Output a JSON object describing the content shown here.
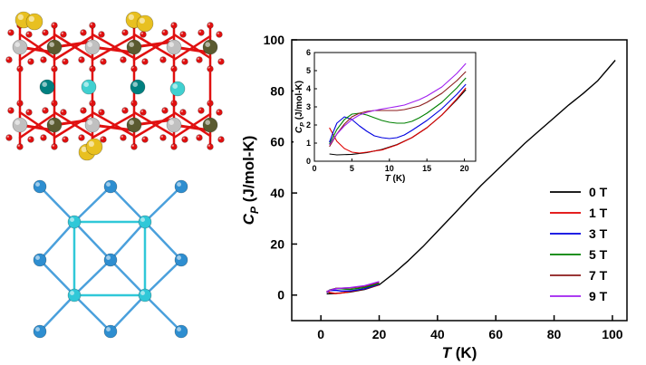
{
  "panels": {
    "crystal_structure": {
      "atom_colors": [
        "#e8c020",
        "#c0c0c0",
        "#5a5a30",
        "#e01010",
        "#008080",
        "#40d0d0"
      ]
    },
    "lattice_network": {
      "site_colors": [
        "#2e8ed0",
        "#30c8d8"
      ],
      "bond_colors": [
        "#4aa0dc",
        "#30c8d8"
      ]
    }
  },
  "chart_data": [
    {
      "type": "line",
      "title": "",
      "xlabel": "T (K)",
      "ylabel": "C_P (J/mol-K)",
      "xlim": [
        -10,
        105
      ],
      "ylim": [
        -10,
        100
      ],
      "xticks": [
        0,
        20,
        40,
        60,
        80,
        100
      ],
      "yticks": [
        0,
        20,
        40,
        60,
        80,
        100
      ],
      "legend_placement": "lower-right",
      "grid": false,
      "series": [
        {
          "name": "0 T",
          "color": "#000000",
          "x": [
            2,
            5,
            10,
            15,
            20,
            25,
            30,
            35,
            40,
            45,
            50,
            55,
            60,
            65,
            70,
            75,
            80,
            85,
            90,
            95,
            101
          ],
          "y": [
            0.5,
            0.6,
            1.2,
            2.2,
            4.0,
            8.5,
            13.5,
            19,
            25,
            31,
            37,
            43,
            48.5,
            54,
            59.5,
            64.5,
            69.5,
            74.5,
            79,
            84,
            92
          ]
        },
        {
          "name": "1 T",
          "color": "#e00000",
          "x": [
            2,
            3,
            5,
            7,
            10,
            15,
            20
          ],
          "y": [
            1.6,
            1.0,
            0.6,
            0.8,
            1.4,
            2.4,
            4.1
          ]
        },
        {
          "name": "3 T",
          "color": "#0000e0",
          "x": [
            2,
            3,
            5,
            7,
            10,
            15,
            20
          ],
          "y": [
            1.0,
            1.8,
            1.9,
            1.6,
            1.6,
            2.5,
            4.3
          ]
        },
        {
          "name": "5 T",
          "color": "#008000",
          "x": [
            2,
            3,
            5,
            7,
            10,
            15,
            20
          ],
          "y": [
            1.2,
            2.0,
            2.6,
            2.5,
            2.2,
            3.0,
            4.6
          ]
        },
        {
          "name": "7 T",
          "color": "#8b1a1a",
          "x": [
            2,
            3,
            5,
            7,
            10,
            15,
            20
          ],
          "y": [
            1.1,
            1.9,
            2.6,
            2.7,
            2.8,
            3.4,
            5.0
          ]
        },
        {
          "name": "9 T",
          "color": "#a020f0",
          "x": [
            2,
            3,
            5,
            7,
            10,
            15,
            20
          ],
          "y": [
            1.2,
            1.9,
            2.5,
            2.7,
            2.9,
            3.7,
            5.3
          ]
        }
      ]
    },
    {
      "type": "line",
      "title": "",
      "xlabel": "T (K)",
      "ylabel": "C_P (J/mol-K)",
      "xlim": [
        0,
        21.5
      ],
      "ylim": [
        0,
        6
      ],
      "xticks": [
        0,
        5,
        10,
        15,
        20
      ],
      "yticks": [
        0,
        1,
        2,
        3,
        4,
        5,
        6
      ],
      "grid": false,
      "series": [
        {
          "name": "0 T",
          "color": "#000000",
          "x": [
            2,
            3,
            5,
            7,
            9,
            11,
            13,
            15,
            17,
            19,
            20.2
          ],
          "y": [
            0.4,
            0.35,
            0.38,
            0.48,
            0.65,
            0.92,
            1.3,
            1.85,
            2.55,
            3.4,
            3.95
          ]
        },
        {
          "name": "1 T",
          "color": "#e00000",
          "x": [
            2,
            3,
            4,
            5,
            6,
            7,
            9,
            11,
            13,
            15,
            17,
            19,
            20.2
          ],
          "y": [
            1.85,
            1.1,
            0.7,
            0.5,
            0.45,
            0.5,
            0.62,
            0.9,
            1.3,
            1.85,
            2.55,
            3.45,
            4.05
          ]
        },
        {
          "name": "3 T",
          "color": "#0000e0",
          "x": [
            2,
            2.5,
            3,
            4,
            5,
            6,
            7,
            8,
            9,
            10,
            11,
            12,
            13,
            15,
            17,
            19,
            20.2
          ],
          "y": [
            1.05,
            1.6,
            2.1,
            2.45,
            2.3,
            1.95,
            1.65,
            1.4,
            1.3,
            1.25,
            1.3,
            1.45,
            1.7,
            2.25,
            2.9,
            3.7,
            4.25
          ]
        },
        {
          "name": "5 T",
          "color": "#008000",
          "x": [
            2,
            2.5,
            3,
            4,
            5,
            6,
            7,
            8,
            9,
            10,
            11,
            12,
            13,
            14,
            15,
            17,
            19,
            20.2
          ],
          "y": [
            0.95,
            1.35,
            1.75,
            2.3,
            2.6,
            2.65,
            2.55,
            2.4,
            2.25,
            2.15,
            2.1,
            2.1,
            2.2,
            2.4,
            2.65,
            3.25,
            4.05,
            4.6
          ]
        },
        {
          "name": "7 T",
          "color": "#8b1a1a",
          "x": [
            2,
            2.5,
            3,
            4,
            5,
            6,
            7,
            8,
            9,
            10,
            11,
            12,
            13,
            14,
            15,
            17,
            19,
            20.2
          ],
          "y": [
            0.8,
            1.15,
            1.5,
            2.05,
            2.45,
            2.65,
            2.75,
            2.8,
            2.8,
            2.8,
            2.8,
            2.85,
            2.95,
            3.05,
            3.25,
            3.75,
            4.45,
            4.95
          ]
        },
        {
          "name": "9 T",
          "color": "#a020f0",
          "x": [
            2,
            2.5,
            3,
            4,
            5,
            6,
            7,
            8,
            9,
            10,
            11,
            12,
            13,
            14,
            15,
            17,
            19,
            20.2
          ],
          "y": [
            0.9,
            1.2,
            1.5,
            1.95,
            2.3,
            2.55,
            2.7,
            2.8,
            2.88,
            2.95,
            3.02,
            3.1,
            3.25,
            3.4,
            3.6,
            4.1,
            4.85,
            5.4
          ]
        }
      ]
    }
  ]
}
